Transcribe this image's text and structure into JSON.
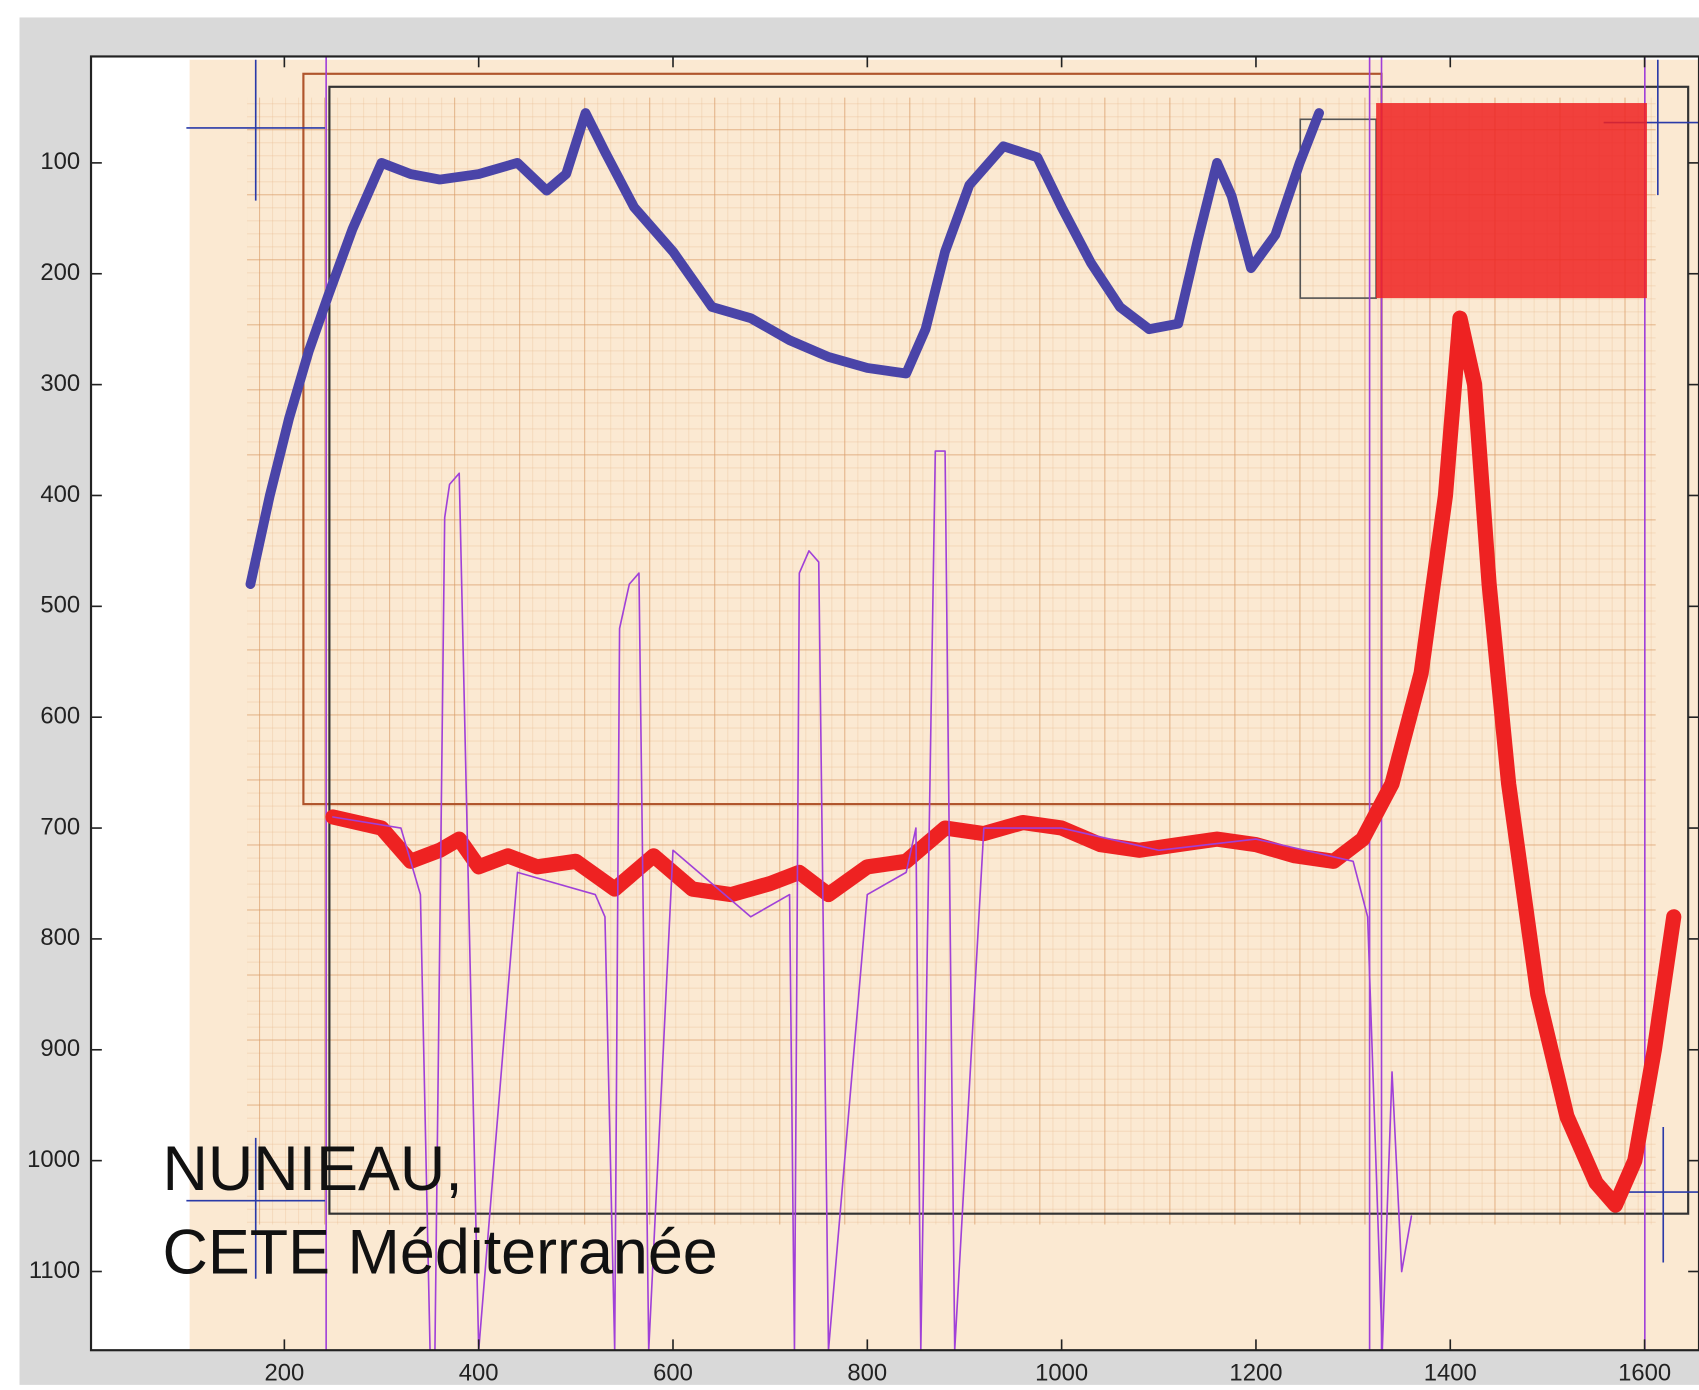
{
  "chart_data": {
    "type": "line",
    "xlim": [
      1,
      1656
    ],
    "ylim": [
      1171,
      4
    ],
    "y_reversed": true,
    "xticks": [
      200,
      400,
      600,
      800,
      1000,
      1200,
      1400,
      1600
    ],
    "yticks": [
      100,
      200,
      300,
      400,
      500,
      600,
      700,
      800,
      900,
      1000,
      1100
    ],
    "annotation": [
      "NUNIEAU,",
      "CETE Méditerranée"
    ],
    "series": [
      {
        "color": "#4a44a8",
        "width": 9,
        "x": [
          165,
          185,
          205,
          225,
          245,
          270,
          300,
          330,
          360,
          400,
          440,
          470,
          490,
          510,
          530,
          560,
          600,
          640,
          680,
          720,
          760,
          800,
          840,
          860,
          880,
          905,
          940,
          975,
          1000,
          1030,
          1060,
          1090,
          1120,
          1140,
          1160,
          1175,
          1195,
          1220,
          1245,
          1265
        ],
        "values": [
          480,
          400,
          330,
          270,
          220,
          160,
          100,
          110,
          115,
          110,
          100,
          125,
          110,
          55,
          90,
          140,
          180,
          230,
          240,
          260,
          275,
          285,
          290,
          250,
          180,
          120,
          85,
          95,
          140,
          190,
          230,
          250,
          245,
          170,
          100,
          130,
          195,
          165,
          100,
          55
        ]
      },
      {
        "color": "#ee2222",
        "width": 14,
        "x": [
          250,
          300,
          330,
          360,
          380,
          400,
          430,
          460,
          500,
          540,
          580,
          620,
          660,
          700,
          730,
          760,
          800,
          840,
          880,
          920,
          960,
          1000,
          1040,
          1080,
          1120,
          1160,
          1200,
          1240,
          1280,
          1310,
          1340,
          1370,
          1395,
          1410,
          1425,
          1440,
          1460,
          1490,
          1520,
          1550,
          1570,
          1590,
          1610,
          1630
        ],
        "values": [
          690,
          700,
          730,
          720,
          710,
          735,
          725,
          735,
          730,
          755,
          725,
          755,
          760,
          750,
          740,
          760,
          735,
          730,
          700,
          705,
          695,
          700,
          715,
          720,
          715,
          710,
          715,
          725,
          730,
          710,
          660,
          560,
          400,
          240,
          300,
          480,
          660,
          850,
          960,
          1020,
          1040,
          1000,
          900,
          780
        ]
      },
      {
        "color": "#a040d8",
        "width": 1.5,
        "x": [
          250,
          320,
          340,
          350,
          355,
          365,
          370,
          380,
          400,
          440,
          520,
          530,
          540,
          545,
          555,
          565,
          575,
          600,
          680,
          720,
          725,
          730,
          740,
          750,
          760,
          800,
          840,
          850,
          855,
          870,
          880,
          890,
          920,
          1000,
          1100,
          1200,
          1300,
          1315,
          1330,
          1340,
          1350,
          1360
        ],
        "values": [
          690,
          700,
          760,
          1171,
          1171,
          420,
          390,
          380,
          1171,
          740,
          760,
          780,
          1171,
          520,
          480,
          470,
          1171,
          720,
          780,
          760,
          1171,
          470,
          450,
          460,
          1171,
          760,
          740,
          700,
          1171,
          360,
          360,
          1171,
          700,
          700,
          720,
          710,
          730,
          780,
          1171,
          920,
          1100,
          1050
        ]
      }
    ]
  }
}
